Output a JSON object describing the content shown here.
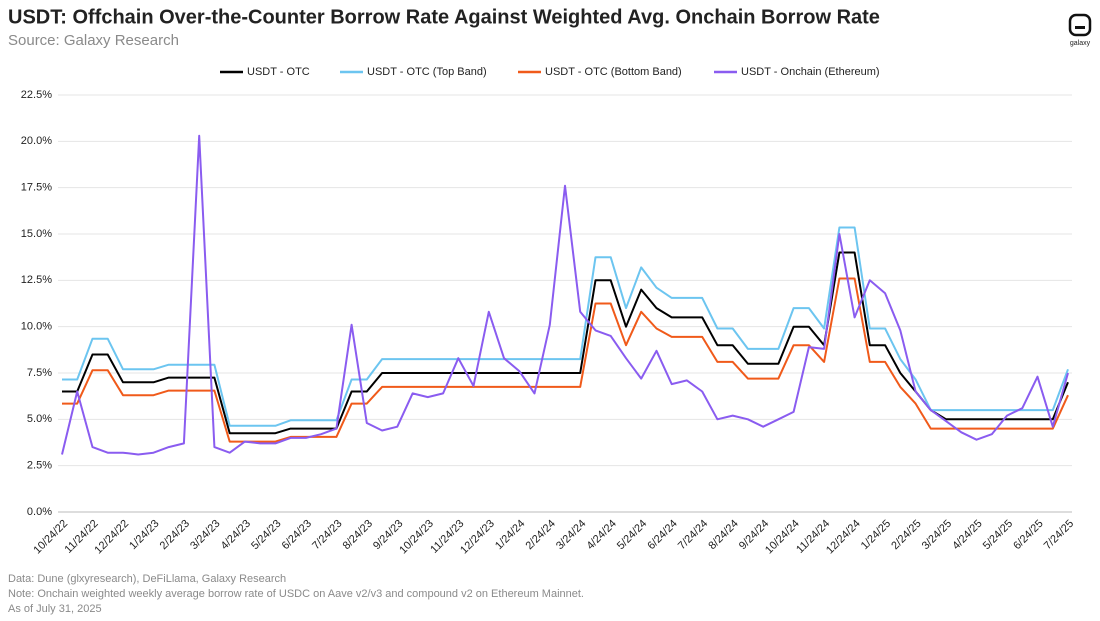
{
  "chart_data": {
    "type": "line",
    "title": "USDT: Offchain Over-the-Counter Borrow Rate Against Weighted Avg. Onchain Borrow Rate",
    "subtitle": "Source: Galaxy Research",
    "logo_text": "galaxy",
    "notes": [
      "Data: Dune (glxyresearch), DeFiLlama, Galaxy Research",
      "Note: Onchain weighted weekly average borrow rate of USDC on Aave v2/v3 and compound v2 on Ethereum Mainnet.",
      "As of July 31, 2025"
    ],
    "categories": [
      "10/24/22",
      null,
      "11/24/22",
      null,
      "12/24/22",
      null,
      "1/24/23",
      null,
      "2/24/23",
      null,
      "3/24/23",
      null,
      "4/24/23",
      null,
      "5/24/23",
      null,
      "6/24/23",
      null,
      "7/24/23",
      null,
      "8/24/23",
      null,
      "9/24/23",
      null,
      "10/24/23",
      null,
      "11/24/23",
      null,
      "12/24/23",
      null,
      "1/24/24",
      null,
      "2/24/24",
      null,
      "3/24/24",
      null,
      "4/24/24",
      null,
      "5/24/24",
      null,
      "6/24/24",
      null,
      "7/24/24",
      null,
      "8/24/24",
      null,
      "9/24/24",
      null,
      "10/24/24",
      null,
      "11/24/24",
      null,
      "12/24/24",
      null,
      "1/24/25",
      null,
      "2/24/25",
      null,
      "3/24/25",
      null,
      "4/24/25",
      null,
      "5/24/25",
      null,
      "6/24/25",
      null,
      "7/24/25"
    ],
    "series": [
      {
        "name": "USDT - OTC",
        "color": "#000000",
        "values": [
          6.5,
          6.5,
          8.5,
          8.5,
          7,
          7,
          7,
          7.25,
          7.25,
          7.25,
          7.25,
          4.25,
          4.25,
          4.25,
          4.25,
          4.5,
          4.5,
          4.5,
          4.5,
          6.5,
          6.5,
          7.5,
          7.5,
          7.5,
          7.5,
          7.5,
          7.5,
          7.5,
          7.5,
          7.5,
          7.5,
          7.5,
          7.5,
          7.5,
          7.5,
          12.5,
          12.5,
          10,
          12,
          11,
          10.5,
          10.5,
          10.5,
          9,
          9,
          8,
          8,
          8,
          10,
          10,
          9,
          14,
          14,
          9,
          9,
          7.5,
          6.5,
          5.5,
          5,
          5,
          5,
          5,
          5,
          5,
          5,
          5,
          7
        ]
      },
      {
        "name": "USDT - OTC (Top Band)",
        "color": "#6cc5f0",
        "values": [
          7.15,
          7.15,
          9.35,
          9.35,
          7.7,
          7.7,
          7.7,
          7.95,
          7.95,
          7.95,
          7.95,
          4.65,
          4.65,
          4.65,
          4.65,
          4.95,
          4.95,
          4.95,
          4.95,
          7.15,
          7.15,
          8.25,
          8.25,
          8.25,
          8.25,
          8.25,
          8.25,
          8.25,
          8.25,
          8.25,
          8.25,
          8.25,
          8.25,
          8.25,
          8.25,
          13.75,
          13.75,
          11,
          13.2,
          12.1,
          11.55,
          11.55,
          11.55,
          9.9,
          9.9,
          8.8,
          8.8,
          8.8,
          11,
          11,
          9.9,
          15.35,
          15.35,
          9.9,
          9.9,
          8.25,
          7.15,
          5.5,
          5.5,
          5.5,
          5.5,
          5.5,
          5.5,
          5.5,
          5.5,
          5.5,
          7.7
        ]
      },
      {
        "name": "USDT - OTC (Bottom Band)",
        "color": "#f05a1a",
        "values": [
          5.85,
          5.85,
          7.65,
          7.65,
          6.3,
          6.3,
          6.3,
          6.55,
          6.55,
          6.55,
          6.55,
          3.8,
          3.8,
          3.8,
          3.8,
          4.05,
          4.05,
          4.05,
          4.05,
          5.85,
          5.85,
          6.75,
          6.75,
          6.75,
          6.75,
          6.75,
          6.75,
          6.75,
          6.75,
          6.75,
          6.75,
          6.75,
          6.75,
          6.75,
          6.75,
          11.25,
          11.25,
          9,
          10.8,
          9.9,
          9.45,
          9.45,
          9.45,
          8.1,
          8.1,
          7.2,
          7.2,
          7.2,
          9,
          9,
          8.1,
          12.6,
          12.6,
          8.1,
          8.1,
          6.75,
          5.85,
          4.5,
          4.5,
          4.5,
          4.5,
          4.5,
          4.5,
          4.5,
          4.5,
          4.5,
          6.3
        ]
      },
      {
        "name": "USDT - Onchain (Ethereum)",
        "color": "#8a5cf0",
        "values": [
          3.1,
          6.5,
          3.5,
          3.2,
          3.2,
          3.1,
          3.2,
          3.5,
          3.7,
          20.3,
          3.5,
          3.2,
          3.8,
          3.7,
          3.7,
          4.0,
          4.0,
          4.2,
          4.5,
          10.1,
          4.8,
          4.4,
          4.6,
          6.4,
          6.2,
          6.4,
          8.3,
          6.8,
          10.8,
          8.3,
          7.6,
          6.4,
          10.1,
          17.6,
          10.8,
          9.8,
          9.5,
          8.3,
          7.2,
          8.7,
          6.9,
          7.1,
          6.5,
          5.0,
          5.2,
          5.0,
          4.6,
          5.0,
          5.4,
          8.9,
          8.8,
          15.0,
          10.5,
          12.5,
          11.8,
          9.8,
          6.5,
          5.5,
          4.9,
          4.3,
          3.9,
          4.2,
          5.2,
          5.6,
          7.3,
          4.6,
          7.5
        ]
      }
    ],
    "ylim": [
      0,
      22.5
    ],
    "yticks": [
      {
        "value": 0,
        "label": "0.0%"
      },
      {
        "value": 2.5,
        "label": "2.5%"
      },
      {
        "value": 5,
        "label": "5.0%"
      },
      {
        "value": 7.5,
        "label": "7.5%"
      },
      {
        "value": 10,
        "label": "10.0%"
      },
      {
        "value": 12.5,
        "label": "12.5%"
      },
      {
        "value": 15,
        "label": "15.0%"
      },
      {
        "value": 17.5,
        "label": "17.5%"
      },
      {
        "value": 20,
        "label": "20.0%"
      },
      {
        "value": 22.5,
        "label": "22.5%"
      }
    ],
    "grid": true,
    "legend": "top"
  }
}
